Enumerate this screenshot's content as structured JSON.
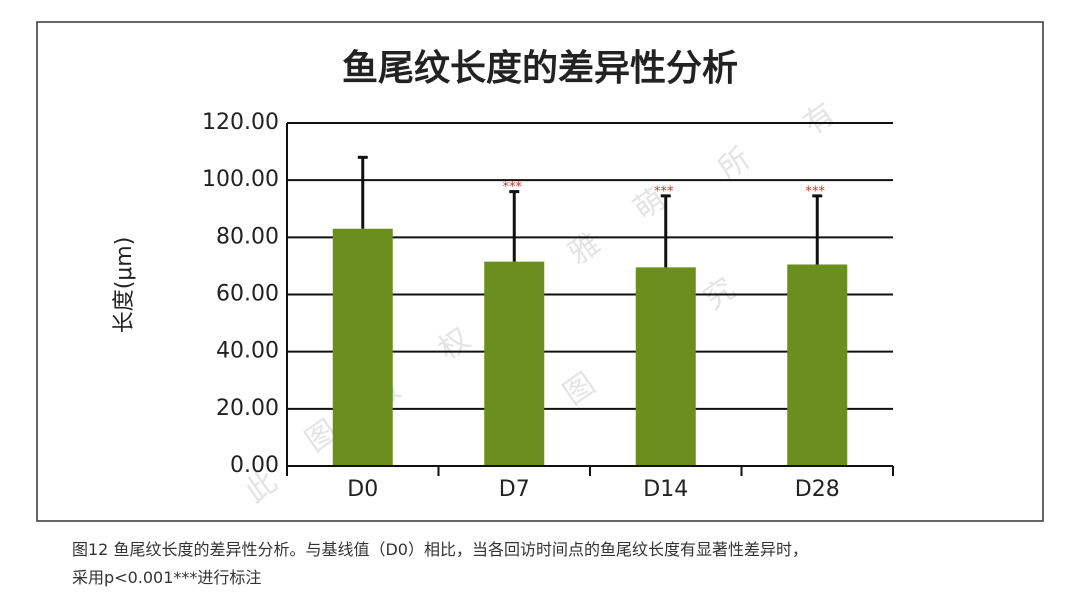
{
  "chart_data": {
    "type": "bar",
    "title": "鱼尾纹长度的差异性分析",
    "y_label": "长度(μm)",
    "categories": [
      "D0",
      "D7",
      "D14",
      "D28"
    ],
    "values": [
      83,
      71.5,
      69.5,
      70.5
    ],
    "errors": [
      25,
      24.5,
      25,
      24
    ],
    "significance": [
      null,
      "***",
      "***",
      "***"
    ],
    "color": "#6b8e1e",
    "significance_color": "#c0392b",
    "ylim": [
      0,
      120
    ],
    "yticks": [
      {
        "value": 0,
        "label": "0.00"
      },
      {
        "value": 20,
        "label": "20.00"
      },
      {
        "value": 40,
        "label": "40.00"
      },
      {
        "value": 60,
        "label": "60.00"
      },
      {
        "value": 80,
        "label": "80.00"
      },
      {
        "value": 100,
        "label": "100.00"
      },
      {
        "value": 120,
        "label": "120.00"
      }
    ],
    "grid": true
  },
  "watermark": [
    [
      "此",
      "图",
      "版",
      "权",
      "归",
      "雅",
      "萌",
      "所",
      "有"
    ],
    [
      "盗",
      "图",
      "必",
      "究"
    ]
  ],
  "caption": [
    "图12 鱼尾纹长度的差异性分析。与基线值（D0）相比，当各回访时间点的鱼尾纹长度有显著性差异时，",
    "采用p<0.001***进行标注"
  ]
}
